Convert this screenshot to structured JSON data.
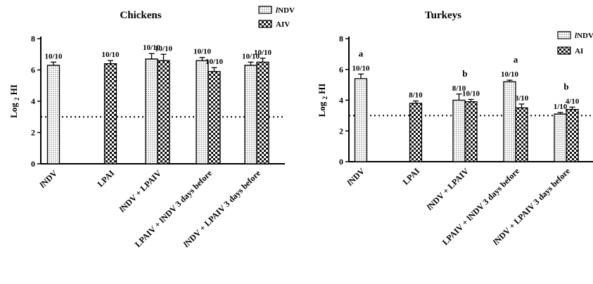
{
  "colors": {
    "ink": "#000000",
    "background": "#ffffff"
  },
  "chart_data": [
    {
      "type": "bar",
      "title": "Chickens",
      "ylabel": "Log 2 HI",
      "ylim": [
        0,
        8
      ],
      "yticks": [
        "0",
        "2",
        "4",
        "6",
        "8"
      ],
      "reference_line": 3,
      "legend": {
        "placement": "top-right",
        "entries": [
          "lNDV",
          "AIV"
        ]
      },
      "categories": [
        "lNDV",
        "LPAI",
        "lNDV + LPAIV",
        "LPAIV + lNDV 3 days before",
        "lNDV + LPAIV 3 days before"
      ],
      "series": [
        {
          "name": "lNDV",
          "pattern": "dots",
          "values": [
            6.3,
            null,
            6.7,
            6.6,
            6.3
          ],
          "errors": [
            0.2,
            null,
            0.35,
            0.2,
            0.2
          ],
          "labels": [
            "10/10",
            "",
            "10/10",
            "10/10",
            "10/10"
          ]
        },
        {
          "name": "AIV",
          "pattern": "checker",
          "values": [
            null,
            6.4,
            6.6,
            5.9,
            6.5
          ],
          "errors": [
            null,
            0.2,
            0.4,
            0.25,
            0.25
          ],
          "labels": [
            "",
            "10/10",
            "10/10",
            "10/10",
            "10/10"
          ]
        }
      ],
      "annotations": []
    },
    {
      "type": "bar",
      "title": "Turkeys",
      "ylabel": "Log 2 HI",
      "ylim": [
        0,
        8
      ],
      "yticks": [
        "0",
        "2",
        "4",
        "6",
        "8"
      ],
      "reference_line": 3,
      "legend": {
        "placement": "top-right",
        "entries": [
          "lNDV",
          "AI"
        ]
      },
      "categories": [
        "lNDV",
        "LPAI",
        "lNDV + LPAIV",
        "LPAIV + lNDV 3 days before",
        "lNDV + LPAIV 3 days before"
      ],
      "series": [
        {
          "name": "lNDV",
          "pattern": "dots",
          "values": [
            5.4,
            null,
            4.0,
            5.2,
            3.1
          ],
          "errors": [
            0.3,
            null,
            0.4,
            0.1,
            0.1
          ],
          "labels": [
            "10/10",
            "",
            "8/10",
            "10/10",
            "1/10"
          ]
        },
        {
          "name": "AI",
          "pattern": "checker",
          "values": [
            null,
            3.8,
            3.9,
            3.5,
            3.4
          ],
          "errors": [
            null,
            0.15,
            0.15,
            0.25,
            0.15
          ],
          "labels": [
            "",
            "8/10",
            "10/10",
            "3/10",
            "4/10"
          ]
        }
      ],
      "annotations": [
        {
          "category": 0,
          "text": "a"
        },
        {
          "category": 2,
          "text": "b"
        },
        {
          "category": 3,
          "text": "a"
        },
        {
          "category": 4,
          "text": "b"
        }
      ]
    }
  ]
}
